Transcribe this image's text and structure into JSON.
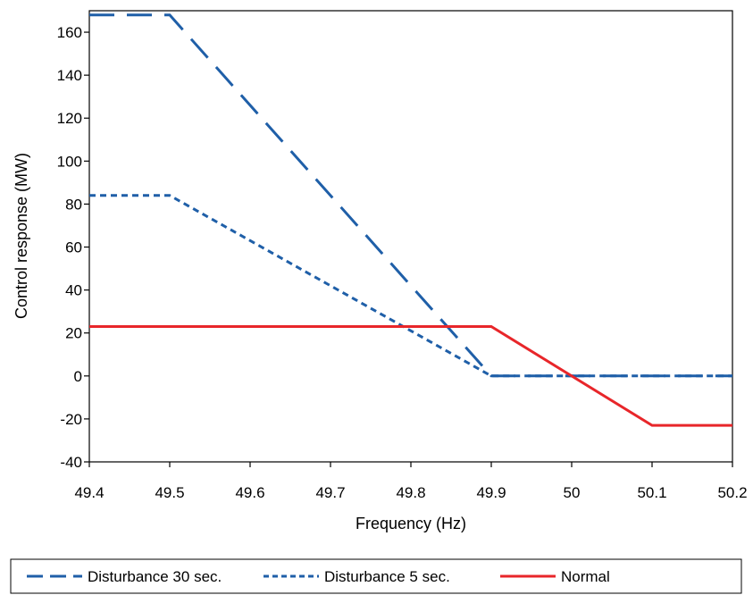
{
  "chart_data": {
    "type": "line",
    "title": "",
    "xlabel": "Frequency (Hz)",
    "ylabel": "Control response (MW)",
    "xlim": [
      49.4,
      50.2
    ],
    "ylim": [
      -40,
      170
    ],
    "x_ticks": [
      "49.4",
      "49.5",
      "49.6",
      "49.7",
      "49.8",
      "49.9",
      "50",
      "50.1",
      "50.2"
    ],
    "y_ticks": [
      "-40",
      "-20",
      "0",
      "20",
      "40",
      "60",
      "80",
      "100",
      "120",
      "140",
      "160"
    ],
    "grid": false,
    "legend_position": "bottom",
    "series": [
      {
        "name": "Disturbance 30 sec.",
        "color": "#1f5fa8",
        "style": "long-dash",
        "points": [
          [
            49.4,
            168
          ],
          [
            49.5,
            168
          ],
          [
            49.9,
            0
          ],
          [
            50.2,
            0
          ]
        ]
      },
      {
        "name": "Disturbance 5 sec.",
        "color": "#1f5fa8",
        "style": "short-dash",
        "points": [
          [
            49.4,
            84
          ],
          [
            49.5,
            84
          ],
          [
            49.9,
            0
          ],
          [
            50.2,
            0
          ]
        ]
      },
      {
        "name": "Normal",
        "color": "#e8262a",
        "style": "solid",
        "points": [
          [
            49.4,
            23
          ],
          [
            49.9,
            23
          ],
          [
            50.1,
            -23
          ],
          [
            50.2,
            -23
          ]
        ]
      }
    ]
  }
}
